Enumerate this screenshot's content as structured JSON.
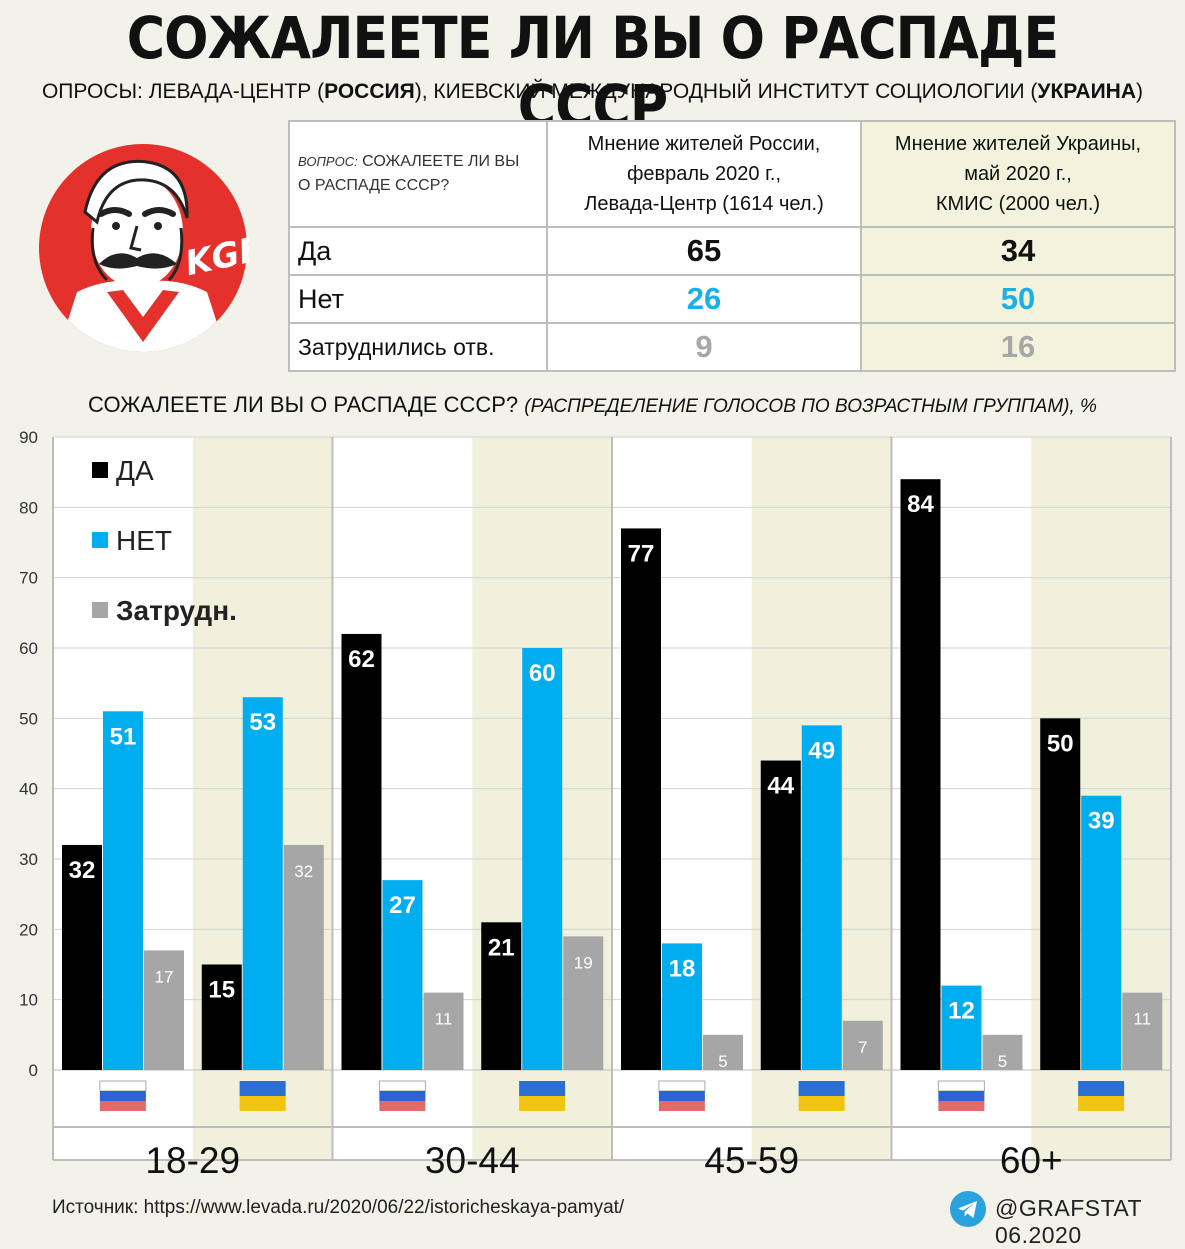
{
  "title": "СОЖАЛЕЕТЕ ЛИ ВЫ О РАСПАДЕ СССР",
  "subtitle": {
    "part1": "ОПРОСЫ: ЛЕВАДА-ЦЕНТР (",
    "russia": "РОССИЯ",
    "part2": "), КИЕВСКИЙ МЕЖДУНАРОДНЫЙ ИНСТИТУТ СОЦИОЛОГИИ (",
    "ukraine": "УКРАИНА",
    "part3": ")"
  },
  "logo": {
    "text": "KGB"
  },
  "summary_table": {
    "question_prefix": "ВОПРОС:",
    "question_line1": " СОЖАЛЕЕТЕ ЛИ ВЫ",
    "question_line2": "О РАСПАДЕ СССР?",
    "russia_header": [
      "Мнение жителей России,",
      "февраль 2020 г.,",
      "Левада-Центр (1614 чел.)"
    ],
    "ukraine_header": [
      "Мнение жителей Украины,",
      "май 2020 г.,",
      "КМИС (2000 чел.)"
    ],
    "rows": [
      {
        "label": "Да",
        "russia": "65",
        "ukraine": "34"
      },
      {
        "label": "Нет",
        "russia": "26",
        "ukraine": "50"
      },
      {
        "label": "Затруднились отв.",
        "russia": "9",
        "ukraine": "16"
      }
    ]
  },
  "chart_data": {
    "type": "bar",
    "title": "СОЖАЛЕЕТЕ ЛИ ВЫ О РАСПАДЕ СССР?",
    "title_note": "(РАСПРЕДЕЛЕНИЕ ГОЛОСОВ ПО ВОЗРАСТНЫМ ГРУППАМ), %",
    "ylim": [
      0,
      90
    ],
    "yticks": [
      0,
      10,
      20,
      30,
      40,
      50,
      60,
      70,
      80,
      90
    ],
    "legend": [
      "ДА",
      "НЕТ",
      "Затрудн."
    ],
    "legend_position": "top-left",
    "age_groups": [
      "18-29",
      "30-44",
      "45-59",
      "60+"
    ],
    "categories": [
      "18-29 Россия",
      "18-29 Украина",
      "30-44 Россия",
      "30-44 Украина",
      "45-59 Россия",
      "45-59 Украина",
      "60+ Россия",
      "60+ Украина"
    ],
    "series": [
      {
        "name": "ДА",
        "color": "#000000",
        "values": [
          32,
          15,
          62,
          21,
          77,
          44,
          84,
          50
        ]
      },
      {
        "name": "НЕТ",
        "color": "#00aeef",
        "values": [
          51,
          53,
          27,
          60,
          18,
          49,
          12,
          39
        ]
      },
      {
        "name": "Затрудн.",
        "color": "#a6a6a6",
        "values": [
          17,
          32,
          11,
          19,
          5,
          7,
          5,
          11
        ]
      }
    ]
  },
  "colors": {
    "background": "#f2f1ea",
    "ukraine_band": "#f1f0dc",
    "yes": "#000000",
    "no": "#00aeef",
    "hard": "#a6a6a6"
  },
  "source": "Источник: https://www.levada.ru/2020/06/22/istoricheskaya-pamyat/",
  "credit": "@GRAFSTAT 06.2020"
}
